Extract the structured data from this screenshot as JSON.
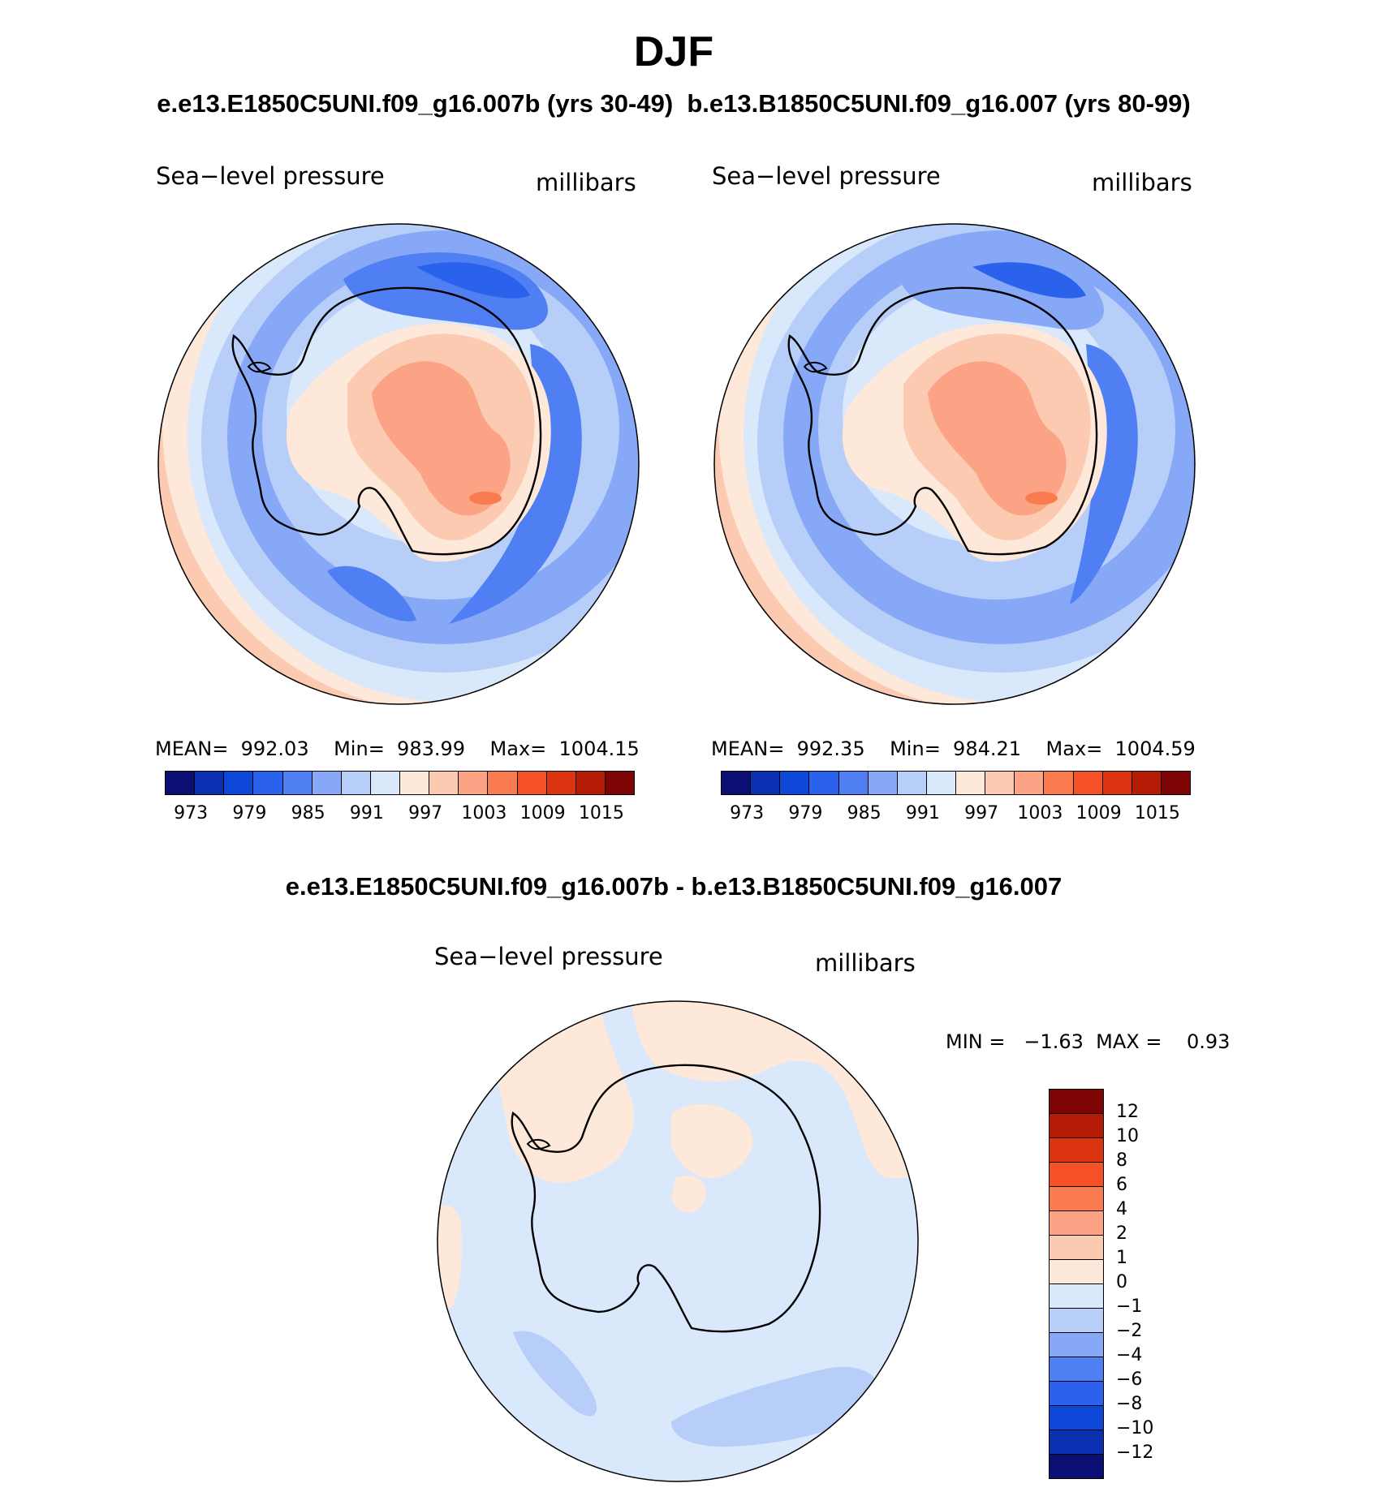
{
  "header": {
    "season": "DJF",
    "subtitle": "e.e13.E1850C5UNI.f09_g16.007b (yrs 30-49)  b.e13.B1850C5UNI.f09_g16.007 (yrs 80-99)"
  },
  "panels": [
    {
      "variable": "Sea−level pressure",
      "units": "millibars",
      "stats": "MEAN=  992.03    Min=  983.99    Max=  1004.15"
    },
    {
      "variable": "Sea−level pressure",
      "units": "millibars",
      "stats": "MEAN=  992.35    Min=  984.21    Max=  1004.59"
    }
  ],
  "colorbar_top": {
    "colors": [
      "#0b0f74",
      "#0a2fb0",
      "#0d48d8",
      "#2a62ec",
      "#4f7ff2",
      "#86a8f6",
      "#b7cef9",
      "#d9e8fb",
      "#fde8d9",
      "#fccab1",
      "#fba384",
      "#f97b4f",
      "#f45127",
      "#dc3410",
      "#b41c06",
      "#7f0404"
    ],
    "labels": [
      "973",
      "979",
      "985",
      "991",
      "997",
      "1003",
      "1009",
      "1015"
    ]
  },
  "difference": {
    "title": "e.e13.E1850C5UNI.f09_g16.007b - b.e13.B1850C5UNI.f09_g16.007",
    "variable": "Sea−level pressure",
    "units": "millibars",
    "stats": "MIN =   −1.63  MAX =    0.93"
  },
  "colorbar_diff": {
    "colors": [
      "#7f0404",
      "#b41c06",
      "#dc3410",
      "#f45127",
      "#f97b4f",
      "#fba384",
      "#fccab1",
      "#fde8d9",
      "#d9e8fb",
      "#b7cef9",
      "#86a8f6",
      "#4f7ff2",
      "#2a62ec",
      "#0d48d8",
      "#0a2fb0",
      "#0b0f74"
    ],
    "labels": [
      "12",
      "10",
      "8",
      "6",
      "4",
      "2",
      "1",
      "0",
      "−1",
      "−2",
      "−4",
      "−6",
      "−8",
      "−10",
      "−12"
    ]
  },
  "palette": {
    "land_line": "#000000",
    "c_dark_blue": "#4f7ff2",
    "c_mid_blue": "#86a8f6",
    "c_light_blue": "#b7cef9",
    "c_pale_blue": "#d9e8fb",
    "c_pale_red": "#fde8d9",
    "c_light_red": "#fccab1",
    "c_mid_red": "#fba384",
    "c_red": "#f97b4f"
  }
}
